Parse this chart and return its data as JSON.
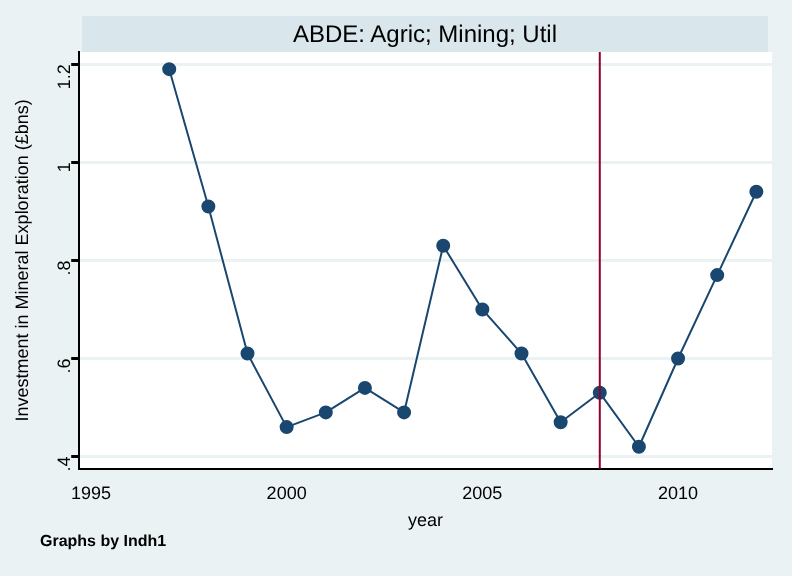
{
  "chart_data": {
    "type": "line",
    "title": "ABDE: Agric; Mining; Util",
    "xlabel": "year",
    "ylabel": "Investment in Mineral Exploration (£bns)",
    "x": [
      1997,
      1998,
      1999,
      2000,
      2001,
      2002,
      2003,
      2004,
      2005,
      2006,
      2007,
      2008,
      2009,
      2010,
      2011,
      2012
    ],
    "series": [
      {
        "color": "#1a476f",
        "values": [
          1.19,
          0.91,
          0.61,
          0.46,
          0.49,
          0.54,
          0.49,
          0.83,
          0.7,
          0.61,
          0.47,
          0.53,
          0.42,
          0.6,
          0.77,
          0.94
        ]
      }
    ],
    "xlim": [
      1994.7,
      2012.4
    ],
    "xticks": [
      1995,
      2000,
      2005,
      2010
    ],
    "ylim": [
      0.375,
      1.225
    ],
    "yticks": [
      {
        "value": 0.4,
        "label": ".4"
      },
      {
        "value": 0.6,
        "label": ".6"
      },
      {
        "value": 0.8,
        "label": ".8"
      },
      1,
      1.2
    ],
    "grid": "y",
    "marker": "circle",
    "line_style": "solid",
    "legend": false,
    "ref_lines": [
      {
        "axis": "x",
        "value": 2008,
        "color": "#90002f"
      }
    ],
    "annotations": [
      "Graphs by Indh1"
    ]
  }
}
